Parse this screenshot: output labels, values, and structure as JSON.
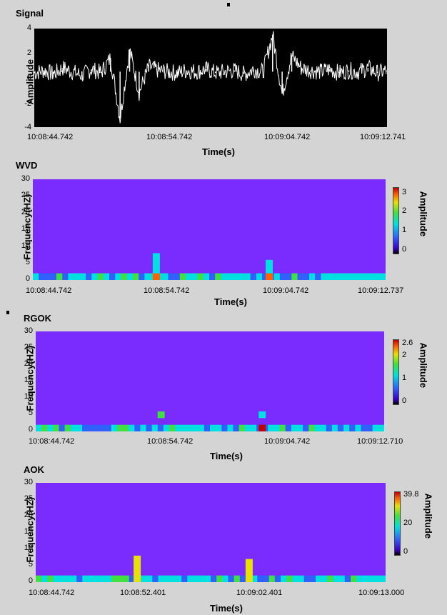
{
  "sections": {
    "signal": {
      "title": "Signal"
    },
    "wvd": {
      "title": "WVD"
    },
    "rgok": {
      "title": "RGOK"
    },
    "aok": {
      "title": "AOK"
    }
  },
  "chart_data": [
    {
      "type": "line",
      "title": "Signal",
      "xlabel": "Time(s)",
      "ylabel": "Amplitude",
      "ylim": [
        -4,
        4
      ],
      "yticks": [
        "4",
        "2",
        "0",
        "-2",
        "-4"
      ],
      "xticks": [
        "10:08:44.742",
        "10:08:54.742",
        "10:09:04.742",
        "10:09:12.741"
      ],
      "background": "#000000",
      "line_color": "#ffffff",
      "series": [
        {
          "values": [
            0.4,
            0.6,
            0.3,
            0.8,
            0.5,
            0.2,
            0.7,
            0.4,
            1.6,
            -3.3,
            2.3,
            -1.2,
            0.9,
            0.6,
            0.5,
            0.4,
            0.6,
            0.5,
            0.7,
            0.4,
            0.5,
            0.6,
            0.3,
            0.7,
            0.5,
            3.5,
            -1.3,
            1.8,
            0.8,
            0.6,
            0.5,
            0.7,
            0.4,
            0.6,
            0.5,
            0.8,
            0.4,
            0.6
          ]
        }
      ]
    },
    {
      "type": "heatmap",
      "title": "WVD",
      "xlabel": "Time(s)",
      "ylabel": "Frequency(HZ)",
      "ylim": [
        0,
        30
      ],
      "yticks": [
        "30",
        "25",
        "20",
        "15",
        "10",
        "5",
        "0"
      ],
      "xticks": [
        "10:08:44.742",
        "10:08:54.742",
        "10:09:04.742",
        "10:09:12.737"
      ],
      "colorbar": {
        "title": "Amplitude",
        "ticks": [
          "3",
          "2",
          "1",
          "0"
        ],
        "max": 3.2
      },
      "background": "#7a2cff",
      "hotspots": [
        {
          "t": 0.35,
          "f": [
            0,
            2
          ],
          "a": 2.6
        },
        {
          "t": 0.35,
          "f": [
            2,
            8
          ],
          "a": 1.2
        },
        {
          "t": 0.67,
          "f": [
            0,
            2
          ],
          "a": 2.8
        },
        {
          "t": 0.67,
          "f": [
            2,
            6
          ],
          "a": 1.1
        }
      ]
    },
    {
      "type": "heatmap",
      "title": "RGOK",
      "xlabel": "Time(s)",
      "ylabel": "Frequency(HZ)",
      "ylim": [
        0,
        30
      ],
      "yticks": [
        "30",
        "25",
        "20",
        "15",
        "10",
        "5",
        "0"
      ],
      "xticks": [
        "10:08:44.742",
        "10:08:54.742",
        "10:09:04.742",
        "10:09:12.710"
      ],
      "colorbar": {
        "title": "Amplitude",
        "ticks": [
          "2.6",
          "2",
          "1",
          "0"
        ],
        "max": 2.6
      },
      "background": "#7a2cff",
      "hotspots": [
        {
          "t": 0.36,
          "f": [
            4,
            6
          ],
          "a": 1.6
        },
        {
          "t": 0.65,
          "f": [
            0,
            2
          ],
          "a": 2.4
        },
        {
          "t": 0.65,
          "f": [
            4,
            6
          ],
          "a": 0.8
        }
      ]
    },
    {
      "type": "heatmap",
      "title": "AOK",
      "xlabel": "Time(s)",
      "ylabel": "Frequency(HZ)",
      "ylim": [
        0,
        30
      ],
      "yticks": [
        "30",
        "25",
        "20",
        "15",
        "10",
        "5",
        "0"
      ],
      "xticks": [
        "10:08:44.742",
        "10:08:52.401",
        "10:09:02.401",
        "10:09:13.000"
      ],
      "colorbar": {
        "title": "Amplitude",
        "ticks": [
          "39.8",
          "20",
          "0"
        ],
        "max": 39.8
      },
      "background": "#7a2cff",
      "hotspots": [
        {
          "t": 0.29,
          "f": [
            0,
            8
          ],
          "a": 28
        },
        {
          "t": 0.61,
          "f": [
            0,
            7
          ],
          "a": 30
        }
      ]
    }
  ]
}
